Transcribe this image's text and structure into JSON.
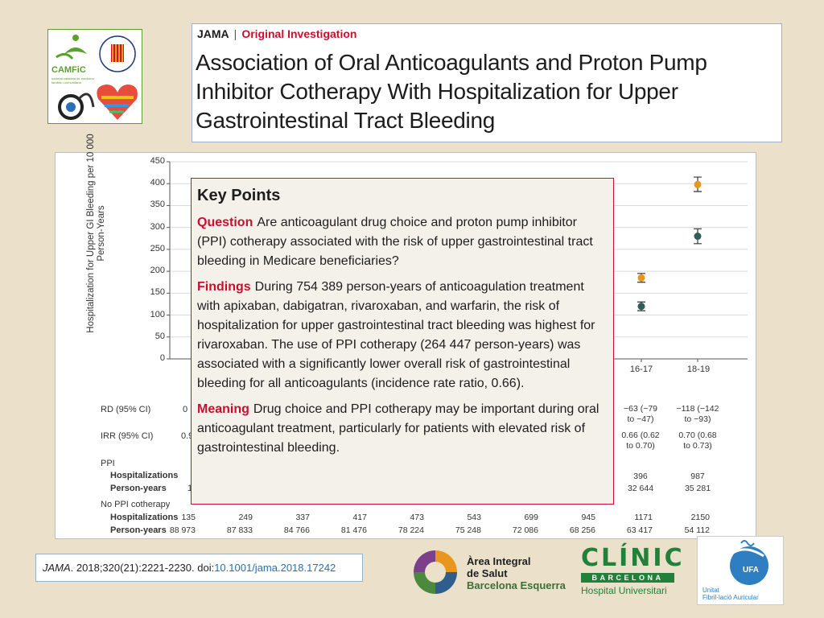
{
  "logos": {
    "camfic": {
      "name": "CAMFiC",
      "subtitle": "societat catalana de medicina familiar i comunitària",
      "ring_text": "VALENCIANA DE CARDIOLOGIA"
    },
    "area_integral": {
      "line1": "Àrea Integral",
      "line2": "de Salut",
      "line3": "Barcelona Esquerra"
    },
    "clinic": {
      "name": "CLÍNIC",
      "city": "BARCELONA",
      "hospital": "Hospital Universitari"
    },
    "ufa": {
      "badge": "UFA",
      "line1": "Unitat",
      "line2": "Fibril·lació Auricular"
    }
  },
  "header": {
    "journal": "JAMA",
    "separator": "|",
    "section": "Original Investigation",
    "title": "Association of Oral Anticoagulants and Proton Pump Inhibitor Cotherapy With Hospitalization for Upper Gastrointestinal Tract Bleeding"
  },
  "chart_data": {
    "type": "scatter",
    "ylabel": "Hospitalization for Upper GI Bleeding per 10 000 Person-Years",
    "ylim": [
      0,
      450
    ],
    "yticks": [
      "450",
      "400",
      "350",
      "300",
      "250",
      "200",
      "150",
      "100",
      "50",
      "0"
    ],
    "x_visible": [
      "16-17",
      "18-19"
    ],
    "series": [
      {
        "color": "#e8961e",
        "points": [
          {
            "x": "16-17",
            "y": 185,
            "lo": 175,
            "hi": 195
          },
          {
            "x": "18-19",
            "y": 398,
            "lo": 382,
            "hi": 415
          }
        ]
      },
      {
        "color": "#2f5d5a",
        "points": [
          {
            "x": "16-17",
            "y": 120,
            "lo": 110,
            "hi": 130
          },
          {
            "x": "18-19",
            "y": 280,
            "lo": 263,
            "hi": 297
          }
        ]
      }
    ]
  },
  "table": {
    "rd_label": "RD (95% CI)",
    "rd_first_fragment": "0",
    "rd_16_17": [
      "−63 (−79",
      "to −47)"
    ],
    "rd_18_19": [
      "−118 (−142",
      "to −93)"
    ],
    "irr_label": "IRR (95% CI)",
    "irr_first_fragment": "0.9",
    "irr_16_17": [
      "0.66 (0.62",
      "to 0.70)"
    ],
    "irr_18_19": [
      "0.70 (0.68",
      "to 0.73)"
    ],
    "ppi_label": "PPI",
    "hosp_label": "Hospitalizations",
    "py_label": "Person-years",
    "ppi_py_first_fragment": "1",
    "ppi_hosp_visible": [
      "396",
      "987"
    ],
    "ppi_py_visible": [
      "32 644",
      "35 281"
    ],
    "noppi_label": "No PPI cotherapy",
    "noppi_hosp": [
      "135",
      "249",
      "337",
      "417",
      "473",
      "543",
      "699",
      "945",
      "1171",
      "2150"
    ],
    "noppi_py": [
      "88 973",
      "87 833",
      "84 766",
      "81 476",
      "78 224",
      "75 248",
      "72 086",
      "68 256",
      "63 417",
      "54 112"
    ]
  },
  "key_points": {
    "title": "Key Points",
    "question_head": "Question",
    "question": "Are anticoagulant drug choice and proton pump inhibitor (PPI) cotherapy associated with the risk of upper gastrointestinal tract bleeding in Medicare beneficiaries?",
    "findings_head": "Findings",
    "findings": "During 754 389 person-years of anticoagulation treatment with apixaban, dabigatran, rivaroxaban, and warfarin, the risk of hospitalization for upper gastrointestinal tract bleeding was highest for rivaroxaban. The use of PPI cotherapy (264 447 person-years) was associated with a significantly lower overall risk of gastrointestinal bleeding for all anticoagulants (incidence rate ratio, 0.66).",
    "meaning_head": "Meaning",
    "meaning": "Drug choice and PPI cotherapy may be important during oral anticoagulant treatment, particularly for patients with elevated risk of gastrointestinal bleeding."
  },
  "citation": {
    "journal": "JAMA",
    "ref": ". 2018;320(21):2221-2230. doi:",
    "doi": "10.1001/jama.2018.17242"
  }
}
